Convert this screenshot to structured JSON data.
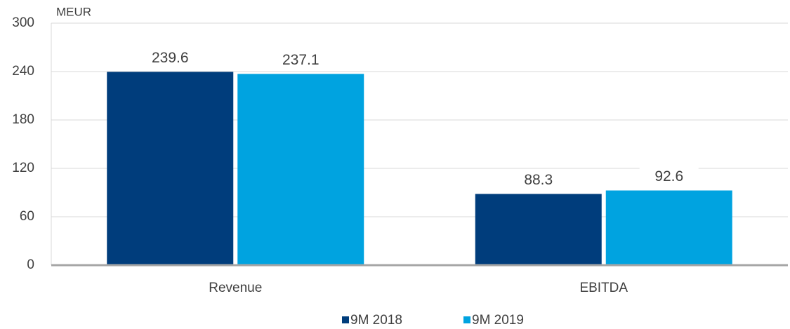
{
  "chart_data": {
    "type": "bar",
    "y_axis_label": "MEUR",
    "categories": [
      "Revenue",
      "EBITDA"
    ],
    "series": [
      {
        "name": "9M 2018",
        "color": "#003d7c",
        "values": [
          239.6,
          88.3
        ]
      },
      {
        "name": "9M 2019",
        "color": "#00a3e0",
        "values": [
          237.1,
          92.6
        ]
      }
    ],
    "ylim": [
      0,
      300
    ],
    "yticks": [
      0,
      60,
      120,
      180,
      240,
      300
    ],
    "grid": true,
    "legend": "bottom"
  }
}
